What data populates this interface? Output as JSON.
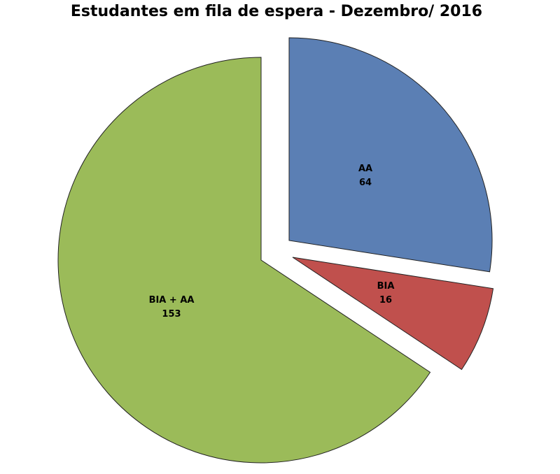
{
  "chart_data": {
    "type": "pie",
    "title": "Estudantes em fila de espera -  Dezembro/ 2016",
    "categories": [
      "AA",
      "BIA",
      "BIA + AA"
    ],
    "values": [
      64,
      16,
      153
    ],
    "colors": [
      "#5B7FB4",
      "#C0504D",
      "#9BBB59"
    ],
    "exploded": [
      "AA",
      "BIA"
    ],
    "start_angle": "12 o'clock",
    "direction": "clockwise",
    "data_labels": "category and value inside slices",
    "legend": "none"
  }
}
